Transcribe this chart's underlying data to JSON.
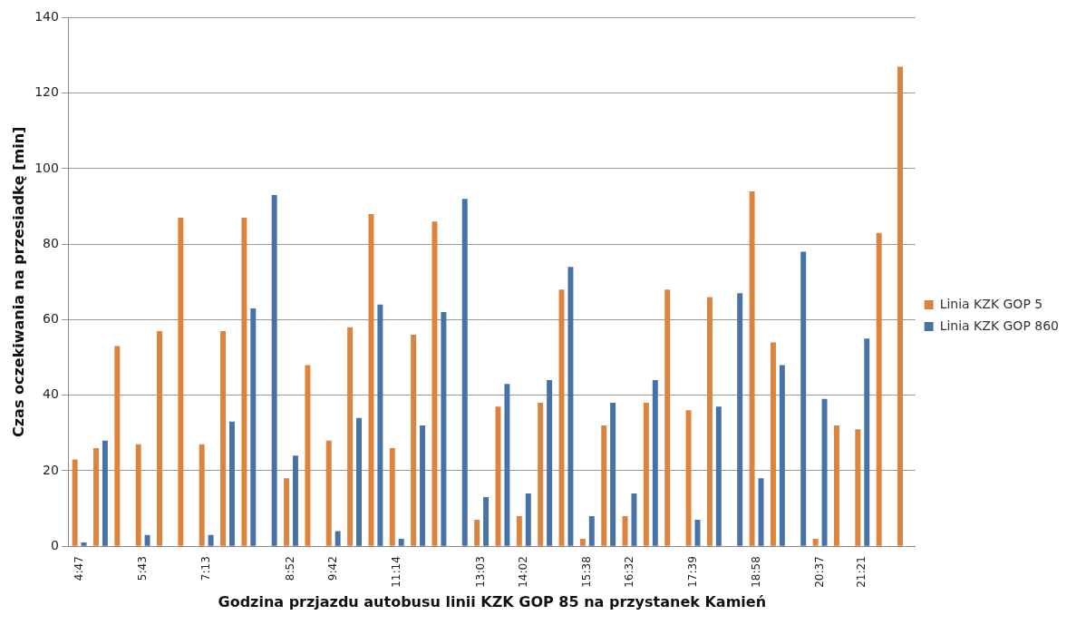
{
  "chart_data": {
    "type": "bar",
    "xlabel": "Godzina przjazdu autobusu linii KZK GOP 85 na przystanek Kamień",
    "ylabel": "Czas oczekiwania na przesiadkę [min]",
    "categories": [
      "4:47",
      null,
      null,
      "5:43",
      null,
      null,
      "7:13",
      null,
      null,
      null,
      "8:52",
      null,
      "9:42",
      null,
      null,
      "11:14",
      null,
      null,
      null,
      "13:03",
      null,
      "14:02",
      null,
      null,
      "15:38",
      null,
      "16:32",
      null,
      null,
      "17:39",
      null,
      null,
      "18:58",
      null,
      null,
      "20:37",
      null,
      "21:21",
      null,
      null
    ],
    "series": [
      {
        "name": "Linia KZK GOP 5",
        "color": "#dc843d",
        "values": [
          23,
          26,
          53,
          27,
          57,
          87,
          27,
          57,
          87,
          null,
          18,
          48,
          28,
          58,
          88,
          26,
          56,
          86,
          null,
          7,
          37,
          8,
          38,
          68,
          2,
          32,
          8,
          38,
          68,
          36,
          66,
          null,
          94,
          54,
          null,
          2,
          32,
          31,
          83,
          127
        ]
      },
      {
        "name": "Linia KZK GOP 860",
        "color": "#4772a8",
        "values": [
          1,
          28,
          null,
          3,
          null,
          null,
          3,
          33,
          63,
          93,
          24,
          null,
          4,
          34,
          64,
          2,
          32,
          62,
          92,
          13,
          43,
          14,
          44,
          74,
          8,
          38,
          14,
          44,
          null,
          7,
          37,
          67,
          18,
          48,
          78,
          39,
          null,
          55,
          null,
          null
        ]
      }
    ],
    "ylim": [
      0,
      140
    ],
    "yticks": [
      0,
      20,
      40,
      60,
      80,
      100,
      120,
      140
    ],
    "grid": "y",
    "legend": "right"
  }
}
